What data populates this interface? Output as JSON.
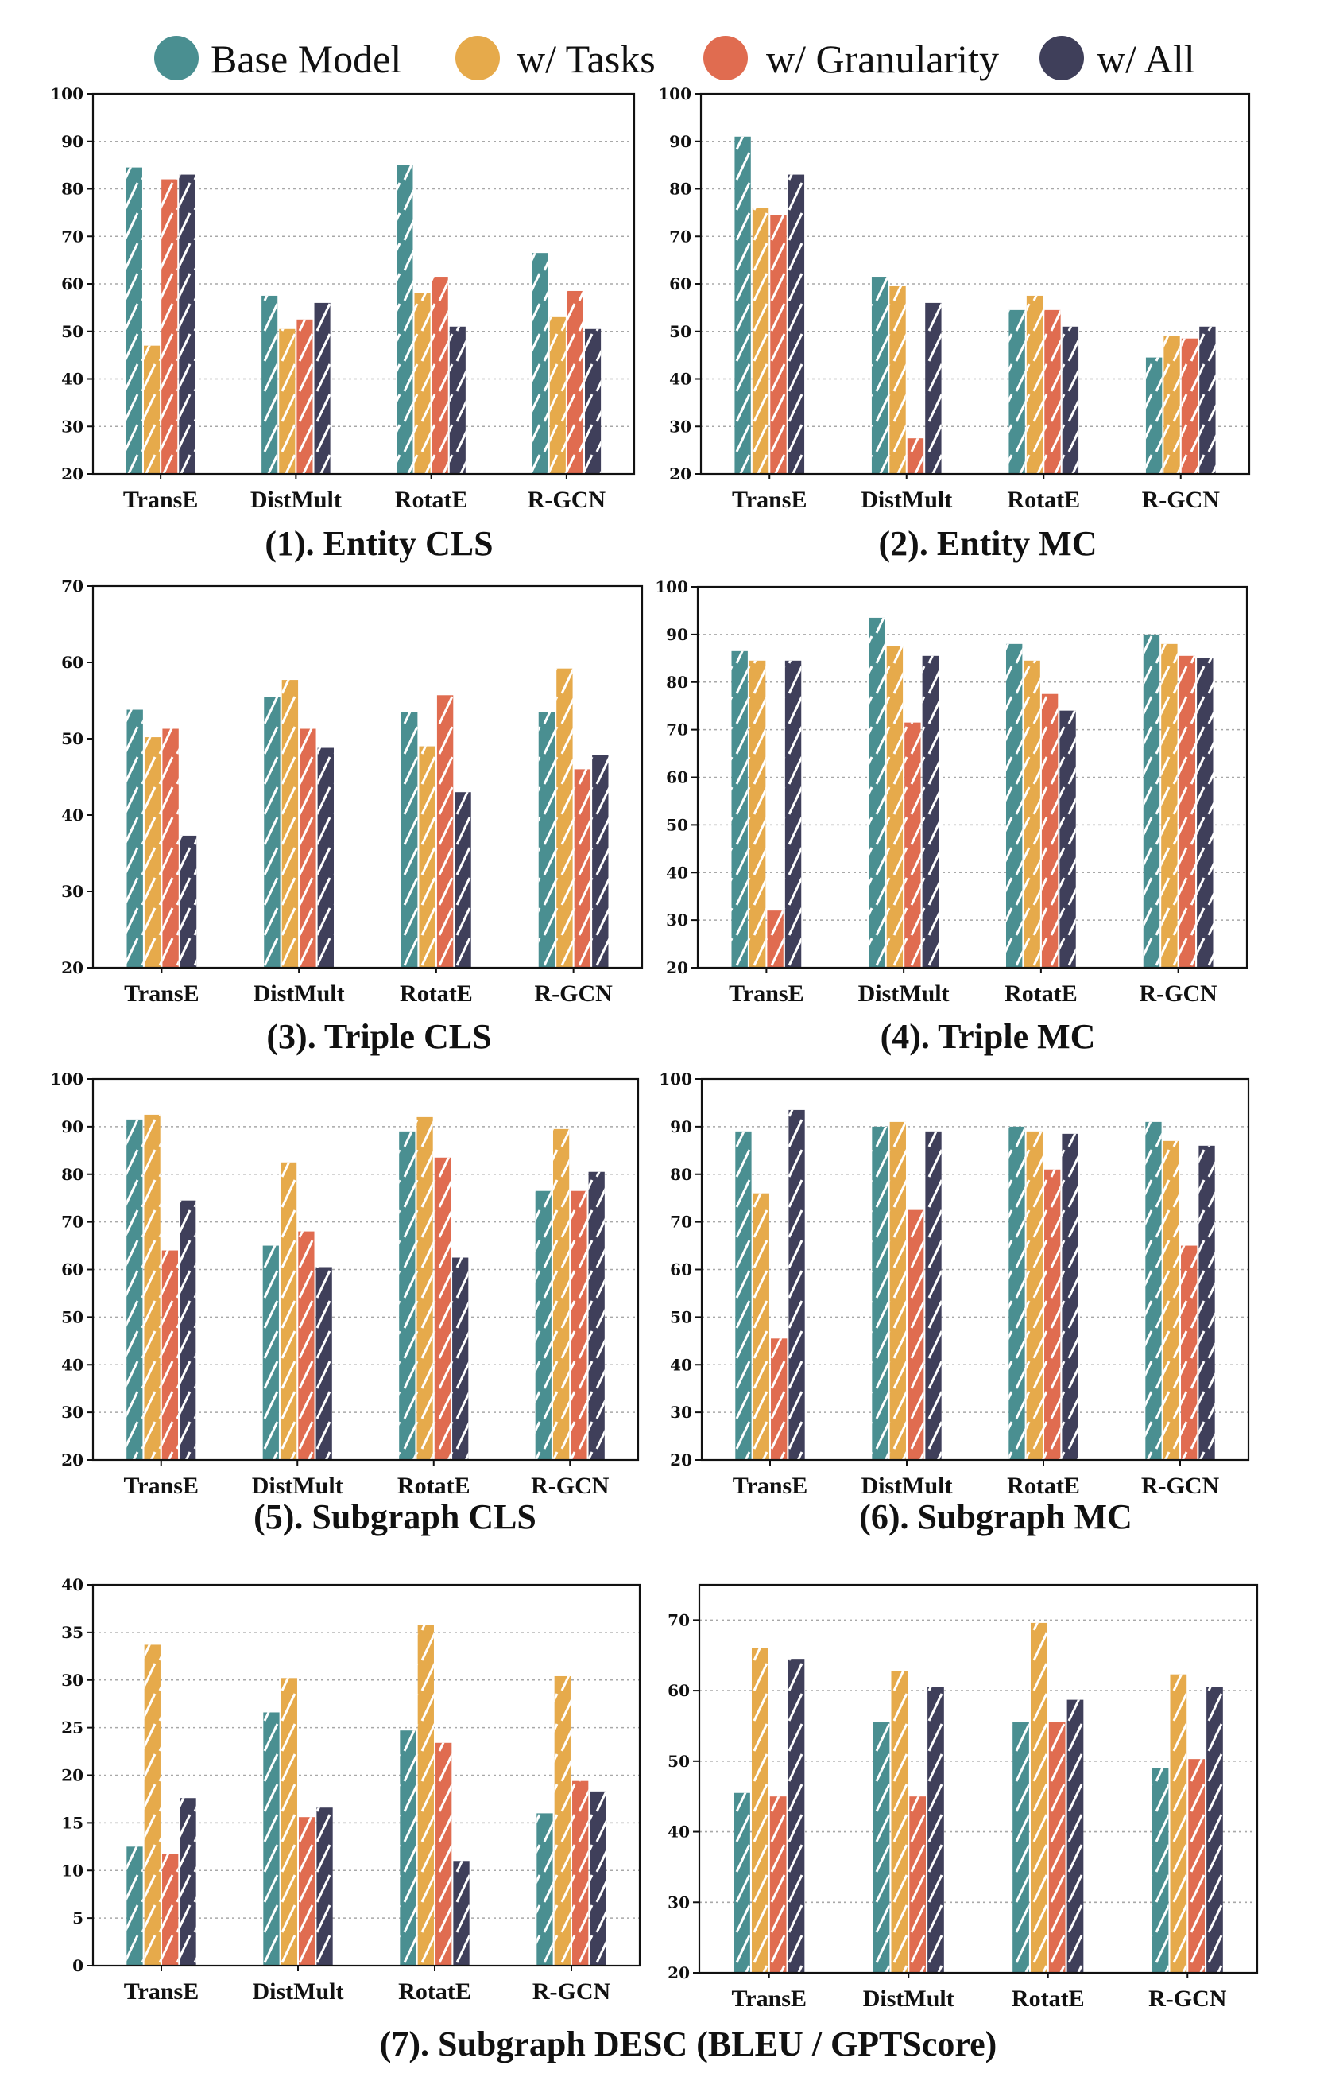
{
  "legend": [
    {
      "name": "Base Model",
      "color": "#4a8f91"
    },
    {
      "name": "w/ Tasks",
      "color": "#e6aa4b"
    },
    {
      "name": "w/ Granularity",
      "color": "#e06c50"
    },
    {
      "name": "w/ All",
      "color": "#3f3f5a"
    }
  ],
  "captions": [
    "(1). Entity CLS",
    "(2). Entity MC",
    "(3). Triple CLS",
    "(4). Triple MC",
    "(5). Subgraph CLS",
    "(6). Subgraph MC",
    "(7). Subgraph DESC (BLEU / GPTScore)"
  ],
  "chart_data": [
    {
      "type": "bar",
      "categories": [
        "TransE",
        "DistMult",
        "RotatE",
        "R-GCN"
      ],
      "series": [
        {
          "name": "Base Model",
          "values": [
            84.5,
            57.5,
            85.0,
            66.5
          ]
        },
        {
          "name": "w/ Tasks",
          "values": [
            47.0,
            50.5,
            58.0,
            53.0
          ]
        },
        {
          "name": "w/ Granularity",
          "values": [
            82.0,
            52.5,
            61.5,
            58.5
          ]
        },
        {
          "name": "w/ All",
          "values": [
            83.0,
            56.0,
            51.0,
            50.5
          ]
        }
      ],
      "ylim": [
        20,
        100
      ],
      "yticks": [
        20,
        30,
        40,
        50,
        60,
        70,
        80,
        90,
        100
      ],
      "grid": "y dotted"
    },
    {
      "type": "bar",
      "categories": [
        "TransE",
        "DistMult",
        "RotatE",
        "R-GCN"
      ],
      "series": [
        {
          "name": "Base Model",
          "values": [
            91.0,
            61.5,
            54.5,
            44.5
          ]
        },
        {
          "name": "w/ Tasks",
          "values": [
            76.0,
            59.5,
            57.5,
            49.0
          ]
        },
        {
          "name": "w/ Granularity",
          "values": [
            74.5,
            27.5,
            54.5,
            48.5
          ]
        },
        {
          "name": "w/ All",
          "values": [
            83.0,
            56.0,
            51.0,
            51.0
          ]
        }
      ],
      "ylim": [
        20,
        100
      ],
      "yticks": [
        20,
        30,
        40,
        50,
        60,
        70,
        80,
        90,
        100
      ],
      "grid": "y dotted"
    },
    {
      "type": "bar",
      "categories": [
        "TransE",
        "DistMult",
        "RotatE",
        "R-GCN"
      ],
      "series": [
        {
          "name": "Base Model",
          "values": [
            53.8,
            55.5,
            53.5,
            53.5
          ]
        },
        {
          "name": "w/ Tasks",
          "values": [
            50.2,
            57.7,
            49.0,
            59.2
          ]
        },
        {
          "name": "w/ Granularity",
          "values": [
            51.3,
            51.3,
            55.7,
            46.0
          ]
        },
        {
          "name": "w/ All",
          "values": [
            37.3,
            48.8,
            43.0,
            47.9
          ]
        }
      ],
      "ylim": [
        20,
        70
      ],
      "yticks": [
        20,
        30,
        40,
        50,
        60,
        70
      ],
      "grid": "none"
    },
    {
      "type": "bar",
      "categories": [
        "TransE",
        "DistMult",
        "RotatE",
        "R-GCN"
      ],
      "series": [
        {
          "name": "Base Model",
          "values": [
            86.5,
            93.5,
            88.0,
            90.0
          ]
        },
        {
          "name": "w/ Tasks",
          "values": [
            84.5,
            87.5,
            84.5,
            88.0
          ]
        },
        {
          "name": "w/ Granularity",
          "values": [
            32.0,
            71.5,
            77.5,
            85.5
          ]
        },
        {
          "name": "w/ All",
          "values": [
            84.5,
            85.5,
            74.0,
            85.0
          ]
        }
      ],
      "ylim": [
        20,
        100
      ],
      "yticks": [
        20,
        30,
        40,
        50,
        60,
        70,
        80,
        90,
        100
      ],
      "grid": "y dotted"
    },
    {
      "type": "bar",
      "categories": [
        "TransE",
        "DistMult",
        "RotatE",
        "R-GCN"
      ],
      "series": [
        {
          "name": "Base Model",
          "values": [
            91.5,
            65.0,
            89.0,
            76.5
          ]
        },
        {
          "name": "w/ Tasks",
          "values": [
            92.5,
            82.5,
            92.0,
            89.5
          ]
        },
        {
          "name": "w/ Granularity",
          "values": [
            64.0,
            68.0,
            83.5,
            76.5
          ]
        },
        {
          "name": "w/ All",
          "values": [
            74.5,
            60.5,
            62.5,
            80.5
          ]
        }
      ],
      "ylim": [
        20,
        100
      ],
      "yticks": [
        20,
        30,
        40,
        50,
        60,
        70,
        80,
        90,
        100
      ],
      "grid": "y dotted"
    },
    {
      "type": "bar",
      "categories": [
        "TransE",
        "DistMult",
        "RotatE",
        "R-GCN"
      ],
      "series": [
        {
          "name": "Base Model",
          "values": [
            89.0,
            90.0,
            90.0,
            91.0
          ]
        },
        {
          "name": "w/ Tasks",
          "values": [
            76.0,
            91.0,
            89.0,
            87.0
          ]
        },
        {
          "name": "w/ Granularity",
          "values": [
            45.5,
            72.5,
            81.0,
            65.0
          ]
        },
        {
          "name": "w/ All",
          "values": [
            93.5,
            89.0,
            88.5,
            86.0
          ]
        }
      ],
      "ylim": [
        20,
        100
      ],
      "yticks": [
        20,
        30,
        40,
        50,
        60,
        70,
        80,
        90,
        100
      ],
      "grid": "y dotted"
    },
    {
      "type": "bar",
      "categories": [
        "TransE",
        "DistMult",
        "RotatE",
        "R-GCN"
      ],
      "series": [
        {
          "name": "Base Model",
          "values": [
            12.5,
            26.6,
            24.7,
            16.0
          ]
        },
        {
          "name": "w/ Tasks",
          "values": [
            33.7,
            30.2,
            35.8,
            30.4
          ]
        },
        {
          "name": "w/ Granularity",
          "values": [
            11.7,
            15.6,
            23.4,
            19.4
          ]
        },
        {
          "name": "w/ All",
          "values": [
            17.6,
            16.6,
            11.0,
            18.3
          ]
        }
      ],
      "ylim": [
        0,
        40
      ],
      "yticks": [
        0,
        5,
        10,
        15,
        20,
        25,
        30,
        35,
        40
      ],
      "grid": "y dotted"
    },
    {
      "type": "bar",
      "categories": [
        "TransE",
        "DistMult",
        "RotatE",
        "R-GCN"
      ],
      "series": [
        {
          "name": "Base Model",
          "values": [
            45.5,
            55.5,
            55.5,
            49.0
          ]
        },
        {
          "name": "w/ Tasks",
          "values": [
            66.0,
            62.8,
            69.6,
            62.3
          ]
        },
        {
          "name": "w/ Granularity",
          "values": [
            45.0,
            45.0,
            55.5,
            50.3
          ]
        },
        {
          "name": "w/ All",
          "values": [
            64.5,
            60.5,
            58.7,
            60.5
          ]
        }
      ],
      "ylim": [
        20,
        75
      ],
      "yticks": [
        20,
        30,
        40,
        50,
        60,
        70
      ],
      "grid": "y dotted"
    }
  ]
}
